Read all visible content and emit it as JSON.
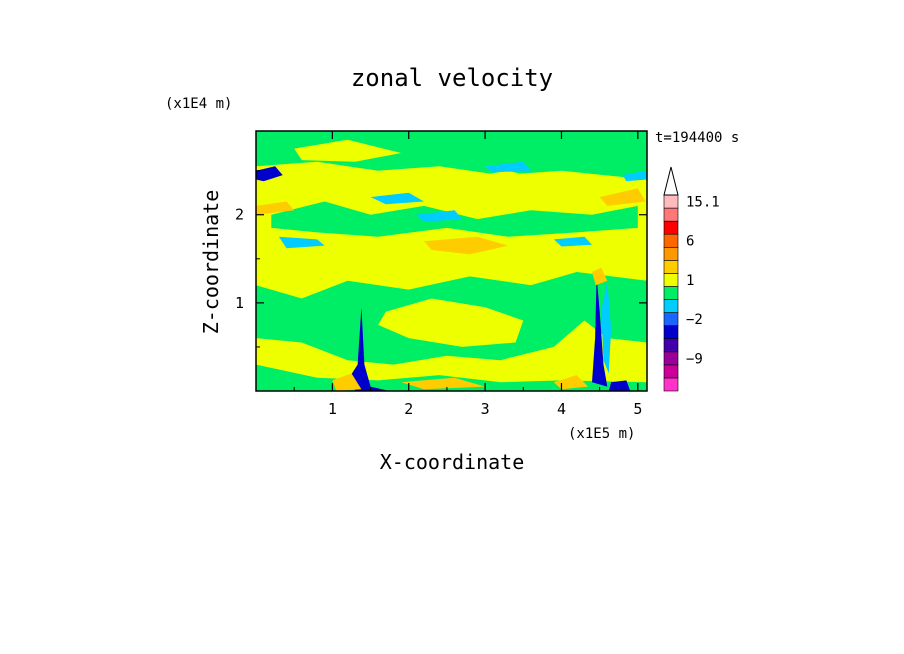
{
  "chart_data": {
    "type": "heatmap",
    "title": "zonal velocity",
    "xlabel": "X-coordinate",
    "ylabel": "Z-coordinate",
    "x_unit": "(x1E5 m)",
    "y_unit": "(x1E4 m)",
    "time_label": "t=194400 s",
    "xlim": [
      0,
      5.12
    ],
    "ylim": [
      0,
      2.95
    ],
    "x_ticks": [
      1,
      2,
      3,
      4,
      5
    ],
    "x_tick_labels": [
      "1",
      "2",
      "3",
      "4",
      "5"
    ],
    "y_ticks": [
      1,
      2
    ],
    "y_tick_labels": [
      "1",
      "2"
    ],
    "colorbar": {
      "levels": [
        -15,
        -12,
        -9,
        -6,
        -4,
        -2,
        -1,
        0,
        1,
        2,
        4,
        6,
        9,
        12,
        15.1
      ],
      "colors": [
        "#ff33cc",
        "#cc0099",
        "#990099",
        "#4400aa",
        "#0000cc",
        "#1a66ff",
        "#00ccff",
        "#00ee66",
        "#eeff00",
        "#ffcc00",
        "#ff9900",
        "#ff6600",
        "#ff0000",
        "#ff7777",
        "#ffbbbb"
      ],
      "labels": [
        {
          "value": 15.1,
          "text": "15.1"
        },
        {
          "value": 6,
          "text": "6"
        },
        {
          "value": 1,
          "text": "1"
        },
        {
          "value": -2,
          "text": "−2"
        },
        {
          "value": -9,
          "text": "−9"
        }
      ],
      "extend": "max"
    },
    "field": {
      "background_level": 0,
      "regions": [
        {
          "level": 0,
          "desc": "band",
          "pts": [
            [
              0,
              2.55
            ],
            [
              0.8,
              2.6
            ],
            [
              1.6,
              2.5
            ],
            [
              2.4,
              2.55
            ],
            [
              3.2,
              2.45
            ],
            [
              4.0,
              2.5
            ],
            [
              5.12,
              2.4
            ],
            [
              5.12,
              2.95
            ],
            [
              0,
              2.95
            ]
          ]
        },
        {
          "level": 0,
          "desc": "band",
          "pts": [
            [
              0,
              1.2
            ],
            [
              0.6,
              1.05
            ],
            [
              1.2,
              1.25
            ],
            [
              2.0,
              1.15
            ],
            [
              2.8,
              1.3
            ],
            [
              3.6,
              1.2
            ],
            [
              4.2,
              1.35
            ],
            [
              5.12,
              1.25
            ],
            [
              5.12,
              0.55
            ],
            [
              4.6,
              0.6
            ],
            [
              4.3,
              0.8
            ],
            [
              3.9,
              0.5
            ],
            [
              3.2,
              0.35
            ],
            [
              2.5,
              0.4
            ],
            [
              1.8,
              0.3
            ],
            [
              1.2,
              0.35
            ],
            [
              0.6,
              0.55
            ],
            [
              0,
              0.6
            ]
          ]
        },
        {
          "level": 0,
          "desc": "band",
          "pts": [
            [
              0,
              0.3
            ],
            [
              0.8,
              0.15
            ],
            [
              1.6,
              0.12
            ],
            [
              2.4,
              0.18
            ],
            [
              3.2,
              0.1
            ],
            [
              4.0,
              0.12
            ],
            [
              5.12,
              0.1
            ],
            [
              5.12,
              0.0
            ],
            [
              0,
              0.0
            ]
          ]
        },
        {
          "level": 0,
          "desc": "band",
          "pts": [
            [
              0.2,
              2.0
            ],
            [
              0.9,
              2.15
            ],
            [
              1.5,
              2.0
            ],
            [
              2.2,
              2.1
            ],
            [
              2.9,
              1.95
            ],
            [
              3.6,
              2.05
            ],
            [
              4.4,
              2.0
            ],
            [
              5.0,
              2.1
            ],
            [
              5.0,
              1.85
            ],
            [
              4.2,
              1.8
            ],
            [
              3.3,
              1.75
            ],
            [
              2.5,
              1.85
            ],
            [
              1.6,
              1.75
            ],
            [
              0.8,
              1.8
            ],
            [
              0.2,
              1.85
            ]
          ]
        },
        {
          "level": 1,
          "desc": "patch",
          "pts": [
            [
              1.7,
              0.9
            ],
            [
              2.3,
              1.05
            ],
            [
              3.0,
              0.95
            ],
            [
              3.5,
              0.8
            ],
            [
              3.4,
              0.55
            ],
            [
              2.7,
              0.5
            ],
            [
              2.0,
              0.6
            ],
            [
              1.6,
              0.75
            ]
          ]
        },
        {
          "level": 1,
          "desc": "patch",
          "pts": [
            [
              0.5,
              2.75
            ],
            [
              1.2,
              2.85
            ],
            [
              1.9,
              2.7
            ],
            [
              1.3,
              2.6
            ],
            [
              0.6,
              2.62
            ]
          ]
        },
        {
          "level": 1,
          "desc": "patch",
          "pts": [
            [
              2.6,
              2.4
            ],
            [
              3.3,
              2.5
            ],
            [
              4.0,
              2.35
            ],
            [
              3.4,
              2.25
            ],
            [
              2.7,
              2.28
            ]
          ]
        },
        {
          "level": 2,
          "desc": "patch",
          "pts": [
            [
              2.2,
              1.7
            ],
            [
              2.9,
              1.75
            ],
            [
              3.3,
              1.65
            ],
            [
              2.8,
              1.55
            ],
            [
              2.3,
              1.6
            ]
          ]
        },
        {
          "level": 2,
          "desc": "patch",
          "pts": [
            [
              4.5,
              2.2
            ],
            [
              5.0,
              2.3
            ],
            [
              5.1,
              2.15
            ],
            [
              4.6,
              2.1
            ]
          ]
        },
        {
          "level": 2,
          "desc": "patch",
          "pts": [
            [
              0.0,
              2.1
            ],
            [
              0.4,
              2.15
            ],
            [
              0.5,
              2.05
            ],
            [
              0.0,
              2.0
            ]
          ]
        },
        {
          "level": 2,
          "desc": "patch",
          "pts": [
            [
              1.9,
              0.1
            ],
            [
              2.6,
              0.15
            ],
            [
              3.0,
              0.05
            ],
            [
              2.2,
              0.02
            ]
          ]
        },
        {
          "level": -1,
          "desc": "patch",
          "pts": [
            [
              0.3,
              1.75
            ],
            [
              0.8,
              1.72
            ],
            [
              0.9,
              1.65
            ],
            [
              0.4,
              1.62
            ]
          ]
        },
        {
          "level": -1,
          "desc": "patch",
          "pts": [
            [
              1.5,
              2.2
            ],
            [
              2.0,
              2.25
            ],
            [
              2.2,
              2.15
            ],
            [
              1.7,
              2.12
            ]
          ]
        },
        {
          "level": -1,
          "desc": "patch",
          "pts": [
            [
              2.1,
              2.0
            ],
            [
              2.6,
              2.05
            ],
            [
              2.7,
              1.95
            ],
            [
              2.2,
              1.92
            ]
          ]
        },
        {
          "level": -1,
          "desc": "patch",
          "pts": [
            [
              3.0,
              2.55
            ],
            [
              3.5,
              2.6
            ],
            [
              3.6,
              2.5
            ],
            [
              3.1,
              2.48
            ]
          ]
        },
        {
          "level": -1,
          "desc": "patch",
          "pts": [
            [
              3.9,
              1.72
            ],
            [
              4.3,
              1.75
            ],
            [
              4.4,
              1.66
            ],
            [
              4.0,
              1.64
            ]
          ]
        },
        {
          "level": -1,
          "desc": "patch",
          "pts": [
            [
              4.8,
              2.45
            ],
            [
              5.1,
              2.5
            ],
            [
              5.12,
              2.4
            ],
            [
              4.85,
              2.38
            ]
          ]
        },
        {
          "level": -4,
          "desc": "patch",
          "pts": [
            [
              0.0,
              2.5
            ],
            [
              0.25,
              2.55
            ],
            [
              0.35,
              2.45
            ],
            [
              0.1,
              2.38
            ],
            [
              0.0,
              2.4
            ]
          ]
        },
        {
          "level": -4,
          "desc": "mountain-left",
          "pts": [
            [
              1.33,
              0.3
            ],
            [
              1.38,
              0.95
            ],
            [
              1.42,
              0.3
            ],
            [
              1.5,
              0.05
            ],
            [
              1.75,
              0.0
            ],
            [
              1.3,
              0.0
            ],
            [
              1.22,
              0.15
            ]
          ]
        },
        {
          "level": 2,
          "desc": "mountain-left",
          "pts": [
            [
              1.0,
              0.12
            ],
            [
              1.25,
              0.2
            ],
            [
              1.38,
              0.02
            ],
            [
              1.05,
              0.0
            ]
          ]
        },
        {
          "level": -4,
          "desc": "mountain-right",
          "pts": [
            [
              4.44,
              0.6
            ],
            [
              4.46,
              1.3
            ],
            [
              4.5,
              0.9
            ],
            [
              4.55,
              0.3
            ],
            [
              4.6,
              0.05
            ],
            [
              4.4,
              0.1
            ]
          ]
        },
        {
          "level": -1,
          "desc": "mountain-right",
          "pts": [
            [
              4.52,
              0.9
            ],
            [
              4.6,
              1.25
            ],
            [
              4.65,
              0.7
            ],
            [
              4.62,
              0.2
            ],
            [
              4.55,
              0.35
            ]
          ]
        },
        {
          "level": 2,
          "desc": "mountain-right",
          "pts": [
            [
              4.4,
              1.35
            ],
            [
              4.52,
              1.4
            ],
            [
              4.6,
              1.25
            ],
            [
              4.45,
              1.2
            ]
          ]
        },
        {
          "level": 2,
          "desc": "mountain-right",
          "pts": [
            [
              3.9,
              0.1
            ],
            [
              4.2,
              0.18
            ],
            [
              4.35,
              0.05
            ],
            [
              4.0,
              0.02
            ]
          ]
        },
        {
          "level": -4,
          "desc": "mountain-right",
          "pts": [
            [
              4.65,
              0.1
            ],
            [
              4.85,
              0.12
            ],
            [
              4.9,
              0.0
            ],
            [
              4.62,
              0.0
            ]
          ]
        }
      ]
    }
  }
}
